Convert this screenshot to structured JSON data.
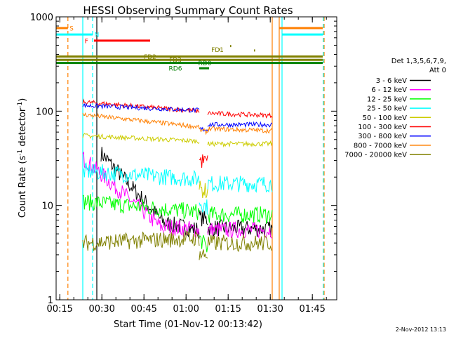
{
  "chart_data": {
    "type": "line",
    "title": "HESSI Observing Summary Count Rates",
    "xlabel": "Start Time (01-Nov-12 00:13:42)",
    "ylabel": "Count Rate (s",
    "ylabel_sup": "-1",
    "ylabel_rest": " detector",
    "ylabel_end": ")",
    "x_unit": "minutes since 00:13:42",
    "xlim": [
      0,
      100
    ],
    "ylim": [
      1,
      1000
    ],
    "y_scale": "log",
    "x_ticks": [
      {
        "t": 1.3,
        "label": "00:15"
      },
      {
        "t": 16.3,
        "label": "00:30"
      },
      {
        "t": 31.3,
        "label": "00:45"
      },
      {
        "t": 46.3,
        "label": "01:00"
      },
      {
        "t": 61.3,
        "label": "01:15"
      },
      {
        "t": 76.3,
        "label": "01:30"
      },
      {
        "t": 91.3,
        "label": "01:45"
      }
    ],
    "y_ticks": [
      {
        "v": 1,
        "label": "1"
      },
      {
        "v": 10,
        "label": "10"
      },
      {
        "v": 100,
        "label": "100"
      },
      {
        "v": 1000,
        "label": "1000"
      }
    ],
    "legend_header": [
      "Det 1,3,5,6,7,9,",
      "Att 0"
    ],
    "legend_position": "right",
    "footer_date": "2-Nov-2012 13:13",
    "series": [
      {
        "name": "3 - 6 keV",
        "color": "#000000",
        "segments": [
          {
            "t0": 16.0,
            "t1": 38.5,
            "v0": 36,
            "v1": 6.5
          },
          {
            "t0": 38.5,
            "t1": 51.0,
            "v0": 6.5,
            "v1": 5.5
          },
          {
            "t0": 51.0,
            "t1": 54.0,
            "v0": 7.5,
            "v1": 7.0
          },
          {
            "t0": 54.0,
            "t1": 77.0,
            "v0": 5.8,
            "v1": 5.6
          }
        ]
      },
      {
        "name": "6 - 12 keV",
        "color": "#ff00ff",
        "segments": [
          {
            "t0": 9.5,
            "t1": 38.5,
            "v0": 32,
            "v1": 5.5
          },
          {
            "t0": 38.5,
            "t1": 51.0,
            "v0": 6.0,
            "v1": 5.5
          },
          {
            "t0": 54.0,
            "t1": 77.0,
            "v0": 5.5,
            "v1": 5.5
          }
        ]
      },
      {
        "name": "12 - 25 keV",
        "color": "#00ff00",
        "segments": [
          {
            "t0": 9.5,
            "t1": 51.0,
            "v0": 11,
            "v1": 8.5
          },
          {
            "t0": 51.0,
            "t1": 54.0,
            "v0": 4.5,
            "v1": 3.5
          },
          {
            "t0": 54.0,
            "t1": 77.0,
            "v0": 8.0,
            "v1": 8.0
          }
        ]
      },
      {
        "name": "25 - 50 keV",
        "color": "#00ffff",
        "segments": [
          {
            "t0": 9.5,
            "t1": 51.0,
            "v0": 23,
            "v1": 19
          },
          {
            "t0": 51.0,
            "t1": 54.0,
            "v0": 11,
            "v1": 9.5
          },
          {
            "t0": 54.0,
            "t1": 77.0,
            "v0": 17,
            "v1": 17
          }
        ]
      },
      {
        "name": "50 - 100 keV",
        "color": "#cccc00",
        "segments": [
          {
            "t0": 9.5,
            "t1": 51.0,
            "v0": 55,
            "v1": 48
          },
          {
            "t0": 51.0,
            "t1": 54.0,
            "v0": 15,
            "v1": 14
          },
          {
            "t0": 54.0,
            "t1": 77.0,
            "v0": 45,
            "v1": 45
          }
        ]
      },
      {
        "name": "100 - 300 keV",
        "color": "#ff0000",
        "segments": [
          {
            "t0": 9.5,
            "t1": 51.0,
            "v0": 125,
            "v1": 100
          },
          {
            "t0": 51.0,
            "t1": 54.0,
            "v0": 30,
            "v1": 29
          },
          {
            "t0": 54.0,
            "t1": 77.0,
            "v0": 95,
            "v1": 90
          }
        ]
      },
      {
        "name": "300 - 800 keV",
        "color": "#0000ff",
        "segments": [
          {
            "t0": 9.5,
            "t1": 51.0,
            "v0": 115,
            "v1": 102
          },
          {
            "t0": 51.0,
            "t1": 54.0,
            "v0": 65,
            "v1": 63
          },
          {
            "t0": 54.0,
            "t1": 77.0,
            "v0": 72,
            "v1": 72
          }
        ]
      },
      {
        "name": "800 - 7000 keV",
        "color": "#ff7f00",
        "segments": [
          {
            "t0": 9.5,
            "t1": 51.0,
            "v0": 92,
            "v1": 68
          },
          {
            "t0": 51.0,
            "t1": 54.0,
            "v0": 63,
            "v1": 60
          },
          {
            "t0": 54.0,
            "t1": 77.0,
            "v0": 65,
            "v1": 62
          }
        ]
      },
      {
        "name": "7000 - 20000 keV",
        "color": "#808000",
        "segments": [
          {
            "t0": 9.5,
            "t1": 51.0,
            "v0": 4.0,
            "v1": 4.5
          },
          {
            "t0": 51.0,
            "t1": 54.0,
            "v0": 3.0,
            "v1": 3.0
          },
          {
            "t0": 54.0,
            "t1": 77.0,
            "v0": 4.0,
            "v1": 4.0
          }
        ]
      }
    ],
    "flag_bars": [
      {
        "label": "S",
        "color": "#ff7f00",
        "t0": 0,
        "t1": 4.2,
        "v": 760,
        "label_t": 5.5
      },
      {
        "label": "S",
        "color": "#ff7f00",
        "t0": 79.5,
        "t1": 95,
        "v": 760,
        "label_t": null
      },
      {
        "label": "N",
        "color": "#00ffff",
        "t0": 0,
        "t1": 13.0,
        "v": 650,
        "label_t": 14.5
      },
      {
        "label": "N",
        "color": "#00ffff",
        "t0": 80.5,
        "t1": 95,
        "v": 650,
        "label_t": null
      },
      {
        "label": "F",
        "color": "#ff0000",
        "t0": 13.5,
        "t1": 33.5,
        "v": 560,
        "label_t": 10.8
      },
      {
        "label": "FD1",
        "color": "#808000",
        "t0": 58.0,
        "t1": 58.4,
        "v": 450,
        "label_t": 57.5
      },
      {
        "label": "FD1",
        "color": "#808000",
        "t0": 62.0,
        "t1": 62.4,
        "v": 490,
        "label_t": null
      },
      {
        "label": "FD1",
        "color": "#808000",
        "t0": 70.5,
        "t1": 70.9,
        "v": 440,
        "label_t": null
      },
      {
        "label": "FD2",
        "color": "#808000",
        "t0": 0,
        "t1": 95,
        "v": 380,
        "label_t": 33.5
      },
      {
        "label": "FD3",
        "color": "#808000",
        "t0": 0,
        "t1": 95,
        "v": 350,
        "label_t": 42.5
      },
      {
        "label": "RD0",
        "color": "#008000",
        "t0": 0,
        "t1": 95,
        "v": 325,
        "label_t": 53.0
      },
      {
        "label": "RD6",
        "color": "#008000",
        "t0": 51.0,
        "t1": 54.5,
        "v": 285,
        "label_t": 42.5
      }
    ],
    "vlines": [
      {
        "t": 4.2,
        "color": "#ff7f00",
        "style": "dashed"
      },
      {
        "t": 13.0,
        "color": "#00ffff",
        "style": "dashed"
      },
      {
        "t": 9.5,
        "color": "#00ffff",
        "style": "solid"
      },
      {
        "t": 77.0,
        "color": "#ff7f00",
        "style": "solid"
      },
      {
        "t": 79.5,
        "color": "#ff7f00",
        "style": "solid"
      },
      {
        "t": 80.5,
        "color": "#00ffff",
        "style": "solid"
      },
      {
        "t": 95.5,
        "color": "#ff7f00",
        "style": "dashed"
      },
      {
        "t": 95.2,
        "color": "#00ffff",
        "style": "dashed"
      },
      {
        "t": 14.5,
        "color": "#000000",
        "style": "solid"
      }
    ]
  }
}
